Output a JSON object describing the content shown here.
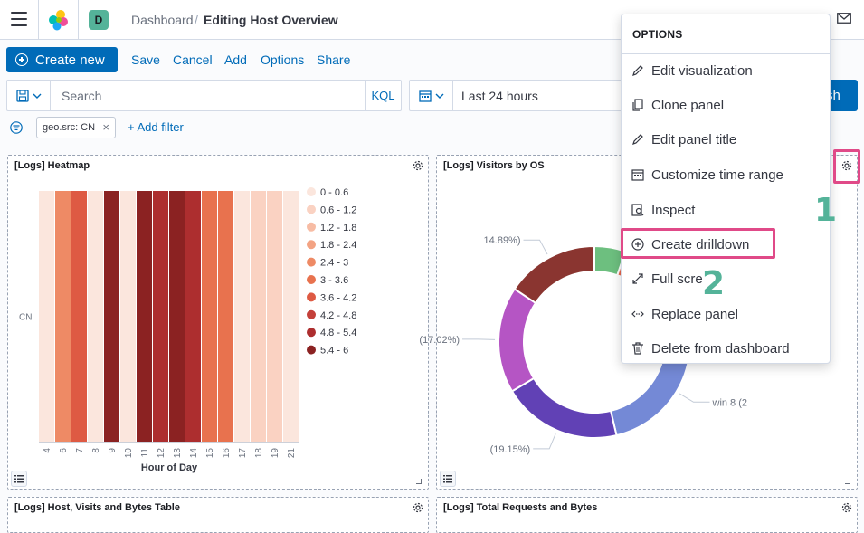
{
  "header": {
    "space_initial": "D",
    "breadcrumbs": [
      "Dashboard",
      "Editing Host Overview"
    ],
    "breadcrumb_separator": "/"
  },
  "toolbar": {
    "create_new": "Create new",
    "links": [
      "Save",
      "Cancel",
      "Add",
      "Options",
      "Share"
    ]
  },
  "query": {
    "search_placeholder": "Search",
    "language": "KQL",
    "time_range": "Last 24 hours",
    "refresh_label": "sh"
  },
  "filters": {
    "pills": [
      {
        "label": "geo.src: CN"
      }
    ],
    "add_filter": "+ Add filter"
  },
  "panels": {
    "heatmap_title": "[Logs] Heatmap",
    "visitors_title": "[Logs] Visitors by OS",
    "table_title": "[Logs] Host, Visits and Bytes Table",
    "requests_title": "[Logs] Total Requests and Bytes"
  },
  "chart_data": [
    {
      "type": "heatmap",
      "title": "[Logs] Heatmap",
      "xlabel": "Hour of Day",
      "y_categories": [
        "CN"
      ],
      "x_categories": [
        "4",
        "6",
        "7",
        "8",
        "9",
        "10",
        "11",
        "12",
        "13",
        "14",
        "15",
        "16",
        "17",
        "18",
        "19",
        "21"
      ],
      "values": [
        0.3,
        2.7,
        4.0,
        0.3,
        5.7,
        0.3,
        5.7,
        5.1,
        5.7,
        5.1,
        3.3,
        3.3,
        0.3,
        0.9,
        0.9,
        0.3
      ],
      "legend": [
        "0 - 0.6",
        "0.6 - 1.2",
        "1.2 - 1.8",
        "1.8 - 2.4",
        "2.4 - 3",
        "3 - 3.6",
        "3.6 - 4.2",
        "4.2 - 4.8",
        "4.8 - 5.4",
        "5.4 - 6"
      ],
      "legend_colors": [
        "#fbe6dd",
        "#fad2c2",
        "#f7bca4",
        "#f3a383",
        "#ee8a65",
        "#e8724e",
        "#de5a43",
        "#c4403a",
        "#ad2e2f",
        "#8b2222"
      ],
      "legend_position": "right"
    },
    {
      "type": "pie",
      "title": "[Logs] Visitors by OS",
      "donut": true,
      "slices": [
        {
          "label": "",
          "value": 5.0,
          "color": "#6dbf7f"
        },
        {
          "label": "",
          "value": 15.0,
          "color": "#e7664c"
        },
        {
          "label": "win 8 (2",
          "value": 24.0,
          "color": "#7489d6"
        },
        {
          "label": "(19.15%)",
          "value": 19.15,
          "color": "#6141b5"
        },
        {
          "label": "(17.02%)",
          "value": 17.02,
          "color": "#b555c4"
        },
        {
          "label": "14.89%)",
          "value": 14.89,
          "color": "#8a3530"
        }
      ]
    }
  ],
  "menu": {
    "title": "OPTIONS",
    "items": [
      {
        "label": "Edit visualization",
        "icon": "pencil-icon"
      },
      {
        "label": "Clone panel",
        "icon": "copy-icon"
      },
      {
        "label": "Edit panel title",
        "icon": "pencil-icon"
      },
      {
        "label": "Customize time range",
        "icon": "calendar-icon"
      },
      {
        "label": "Inspect",
        "icon": "inspect-icon"
      },
      {
        "label": "Create drilldown",
        "icon": "plus-circle-icon"
      },
      {
        "label": "Full scre",
        "icon": "expand-icon"
      },
      {
        "label": "Replace panel",
        "icon": "swap-icon"
      },
      {
        "label": "Delete from dashboard",
        "icon": "trash-icon"
      }
    ]
  },
  "annotations": {
    "gear_number": "1",
    "menu_number": "2"
  },
  "colors": {
    "primary": "#006bb8",
    "highlight": "#e04a88",
    "annotation": "#54b399"
  }
}
